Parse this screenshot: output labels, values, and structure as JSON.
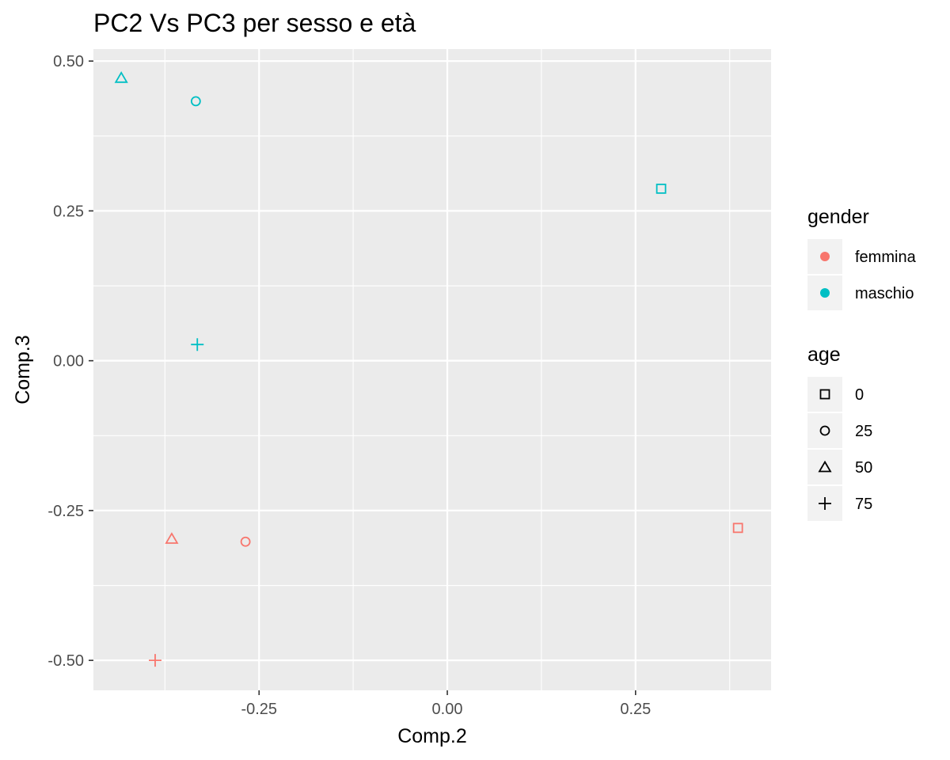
{
  "chart_data": {
    "type": "scatter",
    "title": "PC2 Vs PC3 per sesso e età",
    "xlabel": "Comp.2",
    "ylabel": "Comp.3",
    "xlim": [
      -0.47,
      0.43
    ],
    "ylim": [
      -0.55,
      0.52
    ],
    "x_ticks": [
      -0.25,
      0.0,
      0.25
    ],
    "x_tick_labels": [
      "-0.25",
      "0.00",
      "0.25"
    ],
    "y_ticks": [
      -0.5,
      -0.25,
      0.0,
      0.25,
      0.5
    ],
    "y_tick_labels": [
      "-0.50",
      "-0.25",
      "0.00",
      "0.25",
      "0.50"
    ],
    "grid": true,
    "legend_position": "right",
    "legends": [
      {
        "title": "gender",
        "kind": "color",
        "entries": [
          {
            "label": "femmina",
            "color": "#F8766D"
          },
          {
            "label": "maschio",
            "color": "#00BFC4"
          }
        ]
      },
      {
        "title": "age",
        "kind": "shape",
        "entries": [
          {
            "label": "0",
            "shape": "square"
          },
          {
            "label": "25",
            "shape": "circle"
          },
          {
            "label": "50",
            "shape": "triangle"
          },
          {
            "label": "75",
            "shape": "plus"
          }
        ]
      }
    ],
    "points": [
      {
        "x": -0.433,
        "y": 0.472,
        "gender": "maschio",
        "age": "50"
      },
      {
        "x": -0.334,
        "y": 0.433,
        "gender": "maschio",
        "age": "25"
      },
      {
        "x": 0.284,
        "y": 0.287,
        "gender": "maschio",
        "age": "0"
      },
      {
        "x": -0.332,
        "y": 0.027,
        "gender": "maschio",
        "age": "75"
      },
      {
        "x": -0.366,
        "y": -0.297,
        "gender": "femmina",
        "age": "50"
      },
      {
        "x": -0.268,
        "y": -0.302,
        "gender": "femmina",
        "age": "25"
      },
      {
        "x": 0.386,
        "y": -0.279,
        "gender": "femmina",
        "age": "0"
      },
      {
        "x": -0.388,
        "y": -0.5,
        "gender": "femmina",
        "age": "75"
      }
    ]
  }
}
